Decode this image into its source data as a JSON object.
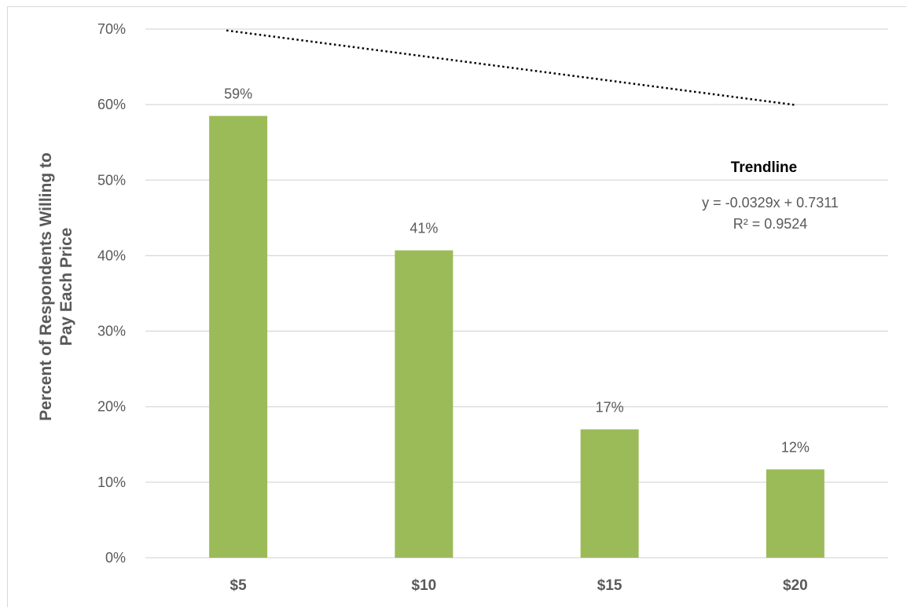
{
  "chart_data": {
    "type": "bar",
    "title": "",
    "xlabel": "",
    "ylabel": "Percent of Respondents Willing to Pay Each Price",
    "ylabel_lines": [
      "Percent of Respondents Willing to",
      "Pay Each Price"
    ],
    "categories": [
      "$5",
      "$10",
      "$15",
      "$20"
    ],
    "values": [
      0.585,
      0.407,
      0.17,
      0.117
    ],
    "data_labels": [
      "59%",
      "41%",
      "17%",
      "12%"
    ],
    "ylim": [
      0,
      0.7
    ],
    "yticks": [
      0,
      0.1,
      0.2,
      0.3,
      0.4,
      0.5,
      0.6,
      0.7
    ],
    "ytick_labels": [
      "0%",
      "10%",
      "20%",
      "30%",
      "40%",
      "50%",
      "60%",
      "70%"
    ],
    "grid": true,
    "legend": "none",
    "bar_color": "#9bbb59",
    "trendline": {
      "type": "linear",
      "slope": -0.0329,
      "intercept": 0.7311,
      "x_units": "category index 1-4",
      "style": "dotted",
      "color": "#000000",
      "heading": "Trendline",
      "equation": "y = -0.0329x + 0.7311",
      "r_squared": "R² = 0.9524"
    }
  }
}
